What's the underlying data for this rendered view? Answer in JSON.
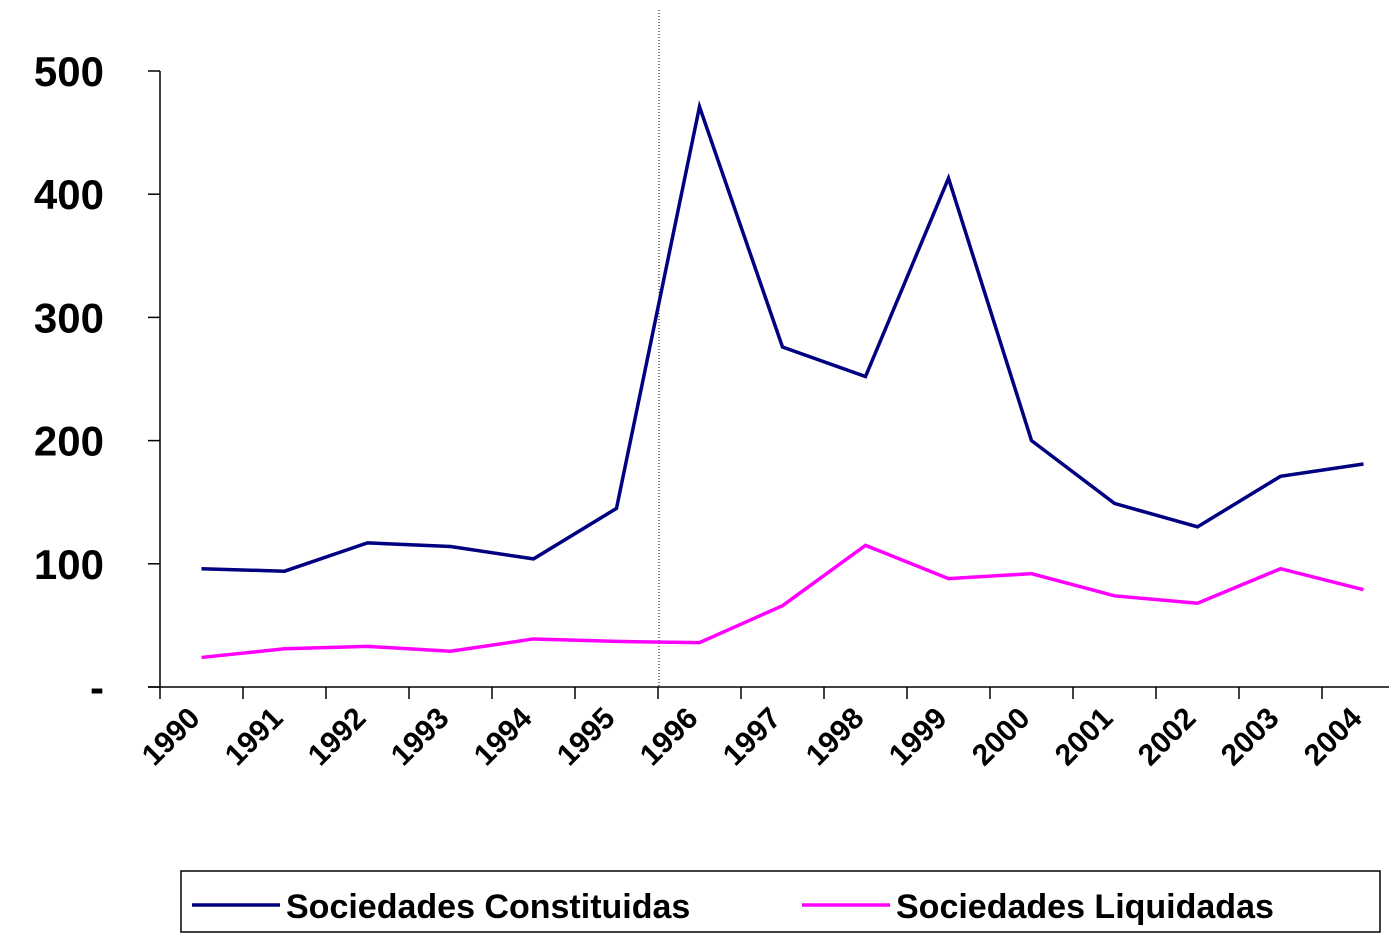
{
  "chart_data": {
    "type": "line",
    "categories": [
      "1990",
      "1991",
      "1992",
      "1993",
      "1994",
      "1995",
      "1996",
      "1997",
      "1998",
      "1999",
      "2000",
      "2001",
      "2002",
      "2003",
      "2004"
    ],
    "series": [
      {
        "name": "Sociedades Constituidas",
        "color": "#000080",
        "values": [
          96,
          94,
          117,
          114,
          104,
          145,
          471,
          276,
          252,
          413,
          200,
          149,
          130,
          171,
          181
        ]
      },
      {
        "name": "Sociedades Liquidadas",
        "color": "#ff00ff",
        "values": [
          24,
          31,
          33,
          29,
          39,
          37,
          36,
          66,
          115,
          88,
          92,
          74,
          68,
          96,
          79
        ]
      }
    ],
    "ylim": [
      0,
      500
    ],
    "yticks": [
      {
        "value": 0,
        "label": "-"
      },
      100,
      200,
      300,
      400,
      500
    ],
    "grid": false
  }
}
